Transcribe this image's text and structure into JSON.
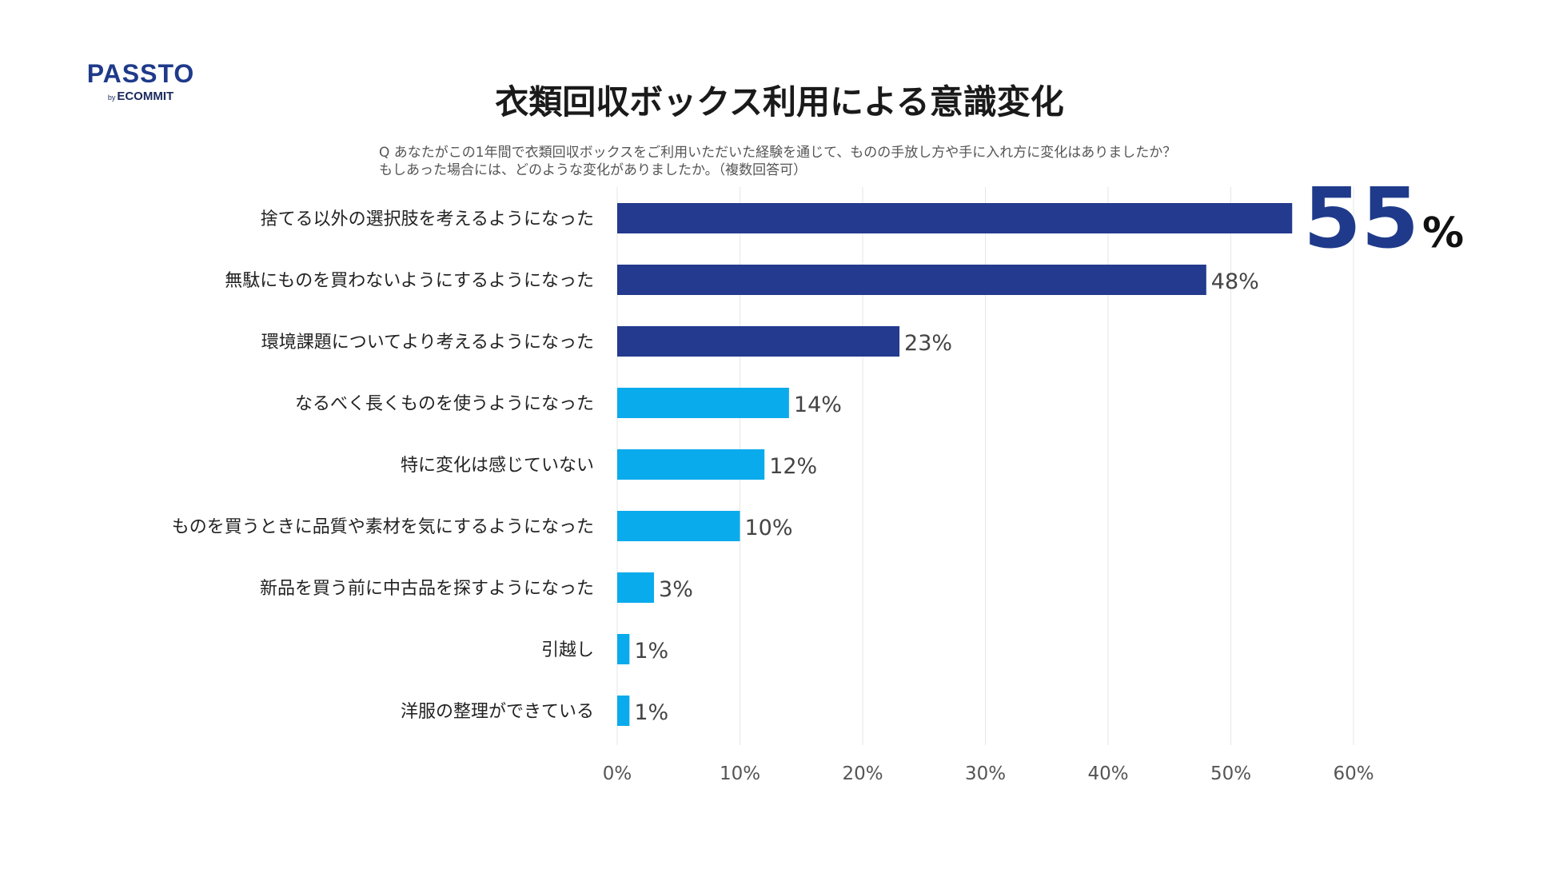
{
  "logo": {
    "name": "PASSTO",
    "by": "by",
    "company": "ECOMMIT"
  },
  "title": "衣類回収ボックス利用による意識変化",
  "question": {
    "line1": "Q あなたがこの1年間で衣類回収ボックスをご利用いただいた経験を通じて、ものの手放し方や手に入れ方に変化はありましたか？",
    "line2": "もしあった場合には、どのような変化がありましたか。（複数回答可）"
  },
  "colors": {
    "dark": "#233a8e",
    "light": "#0aabec",
    "grid": "#e6e6e6",
    "logo": "#1f3a8a"
  },
  "chart_data": {
    "type": "bar",
    "orientation": "horizontal",
    "title": "衣類回収ボックス利用による意識変化",
    "categories": [
      "捨てる以外の選択肢を考えるようになった",
      "無駄にものを買わないようにするようになった",
      "環境課題についてより考えるようになった",
      "なるべく長くものを使うようになった",
      "特に変化は感じていない",
      "ものを買うときに品質や素材を気にするようになった",
      "新品を買う前に中古品を探すようになった",
      "引越し",
      "洋服の整理ができている"
    ],
    "values": [
      55,
      48,
      23,
      14,
      12,
      10,
      3,
      1,
      1
    ],
    "value_labels": [
      "55",
      "48%",
      "23%",
      "14%",
      "12%",
      "10%",
      "3%",
      "1%",
      "1%"
    ],
    "highlight_suffix": "%",
    "bar_colors": [
      "dark",
      "dark",
      "dark",
      "light",
      "light",
      "light",
      "light",
      "light",
      "light"
    ],
    "xlim": [
      0,
      60
    ],
    "xticks": [
      0,
      10,
      20,
      30,
      40,
      50,
      60
    ],
    "xtick_labels": [
      "0%",
      "10%",
      "20%",
      "30%",
      "40%",
      "50%",
      "60%"
    ],
    "grid": true
  }
}
